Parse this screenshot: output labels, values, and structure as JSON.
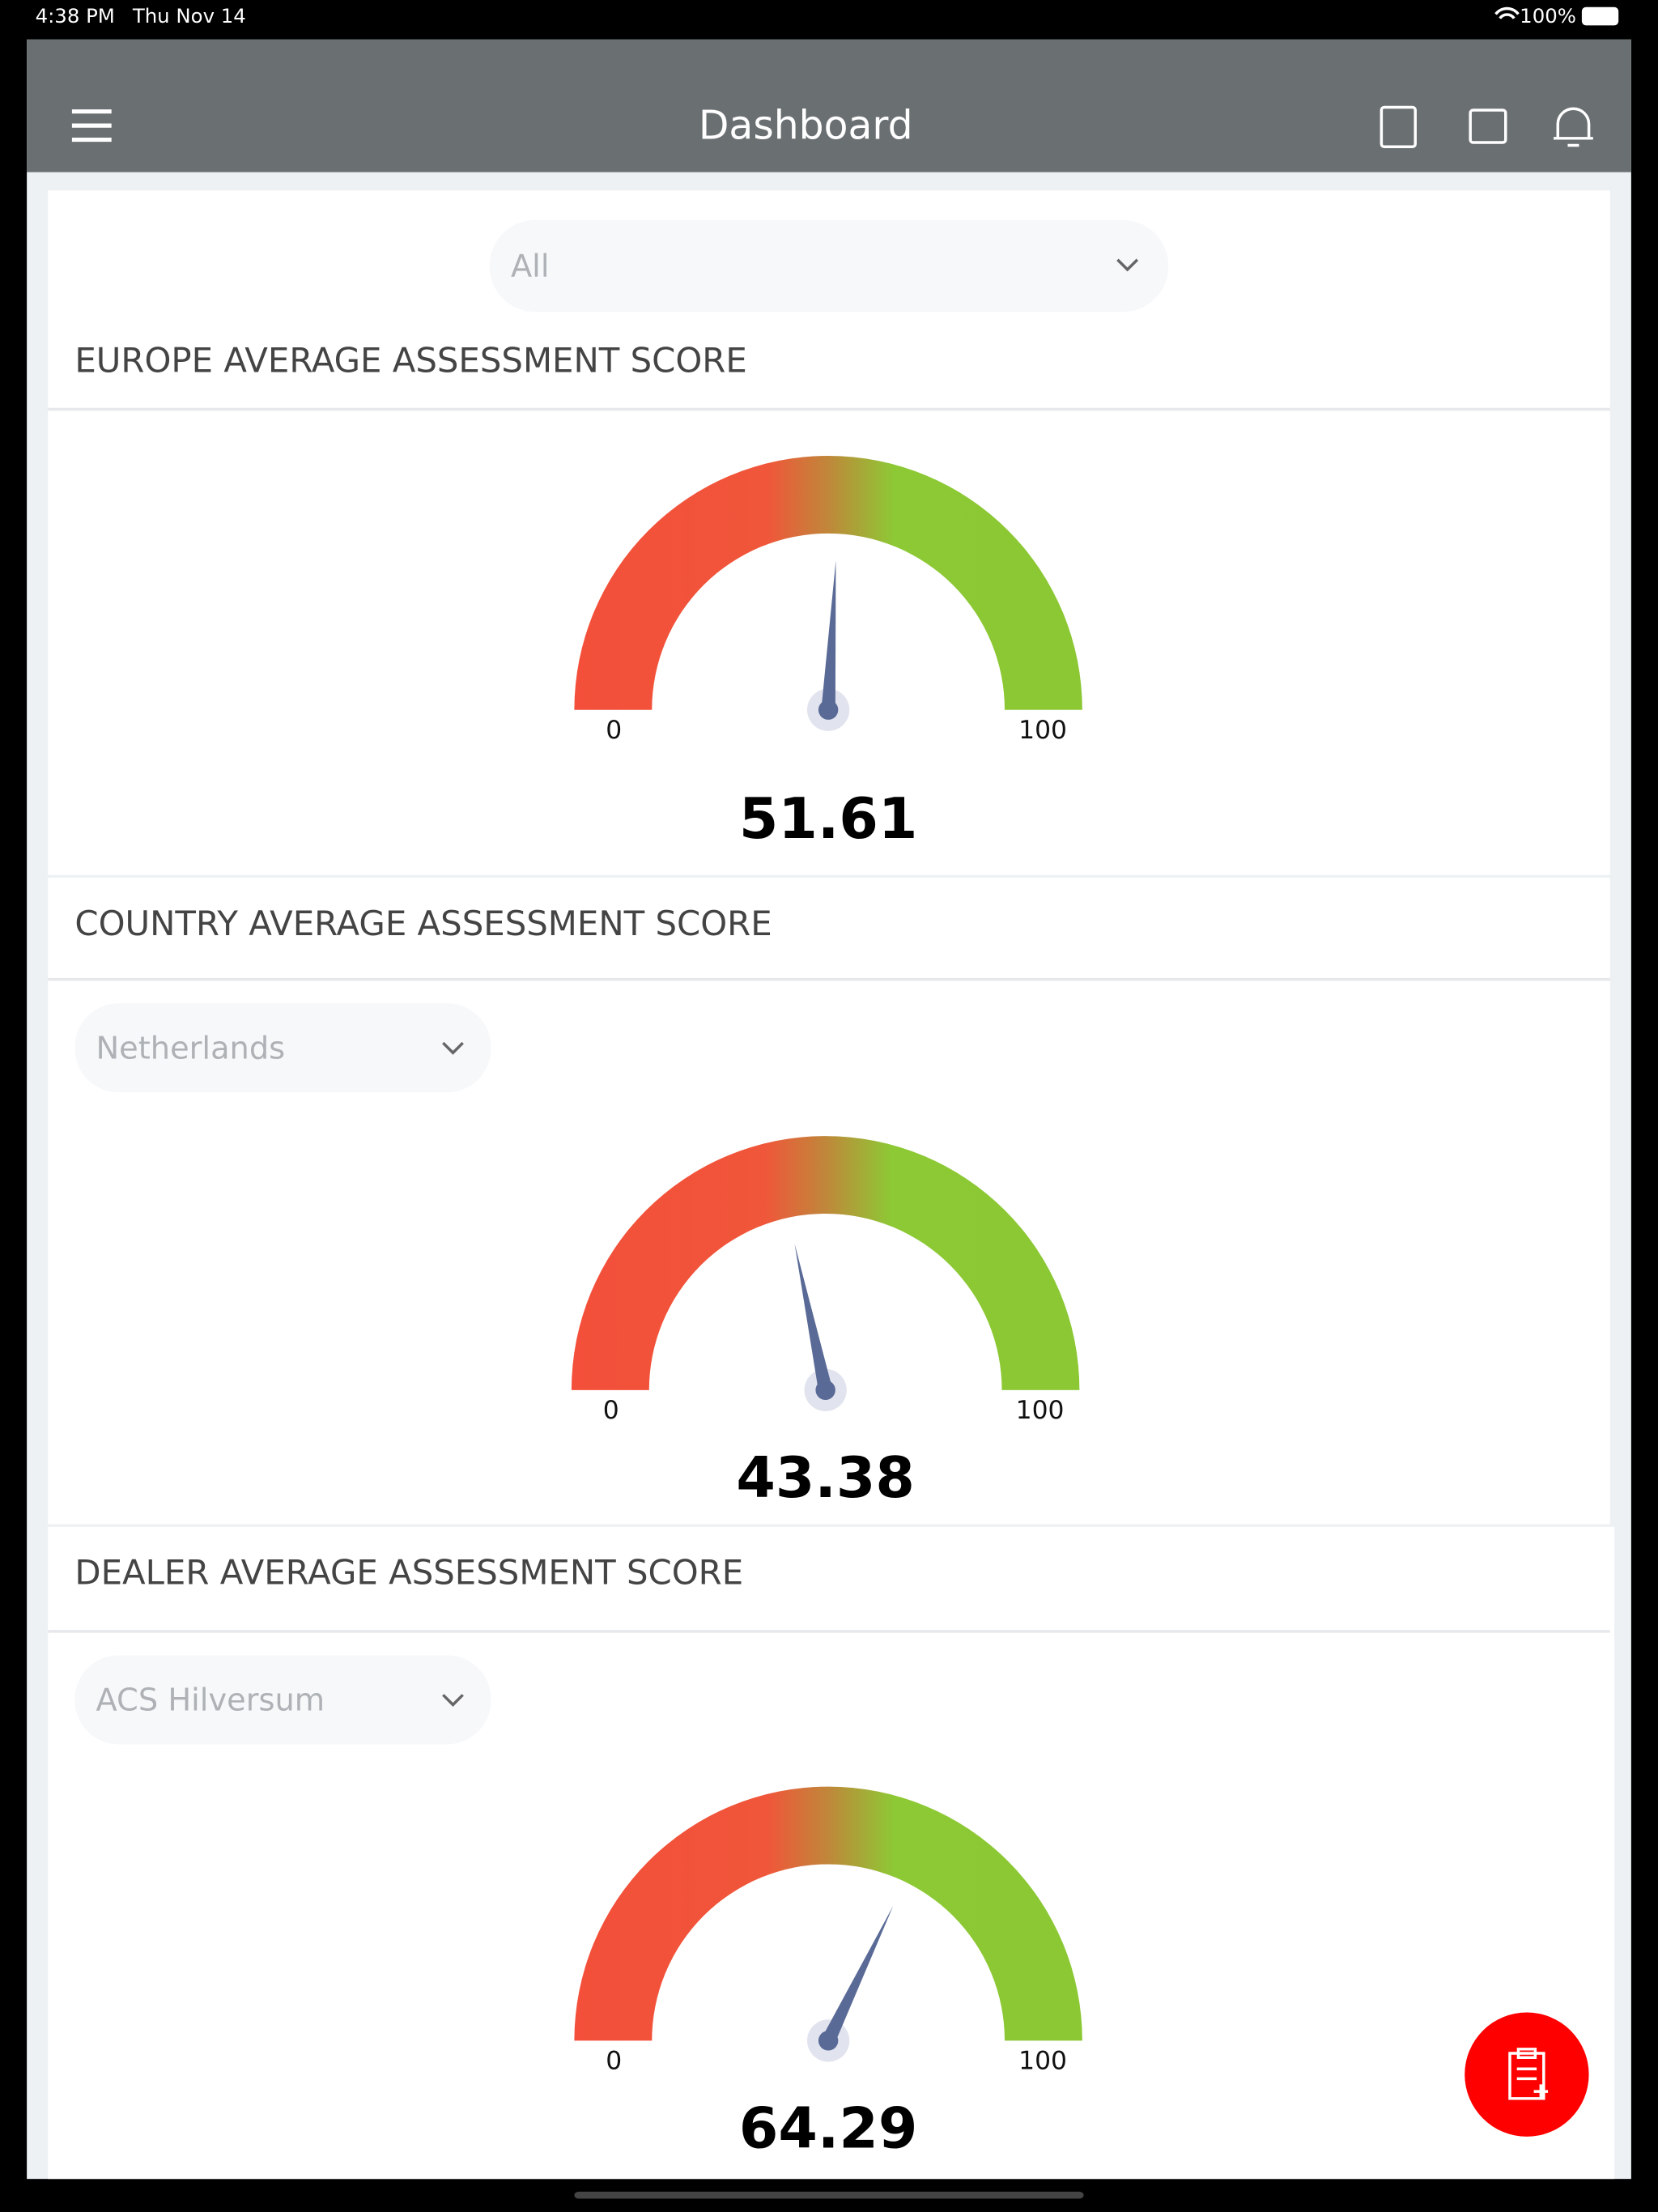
{
  "status_bar": {
    "time": "4:38 PM",
    "date": "Thu Nov 14",
    "battery": "100%"
  },
  "header": {
    "title": "Dashboard"
  },
  "filter": "All",
  "gauges": [
    {
      "title": "EUROPE AVERAGE ASSESSMENT SCORE",
      "min": 0,
      "max": 100,
      "value": 51.61
    },
    {
      "title": "COUNTRY AVERAGE ASSESSMENT SCORE",
      "selector": "Netherlands",
      "min": 0,
      "max": 100,
      "value": 43.38
    },
    {
      "title": "DEALER AVERAGE ASSESSMENT SCORE",
      "selector": "ACS Hilversum",
      "min": 0,
      "max": 100,
      "value": 64.29
    }
  ]
}
